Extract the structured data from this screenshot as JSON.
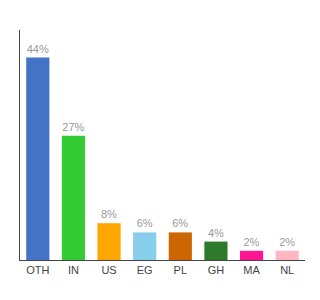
{
  "chart_data": {
    "type": "bar",
    "categories": [
      "OTH",
      "IN",
      "US",
      "EG",
      "PL",
      "GH",
      "MA",
      "NL"
    ],
    "values": [
      44,
      27,
      8,
      6,
      6,
      4,
      2,
      2
    ],
    "value_labels": [
      "44%",
      "27%",
      "8%",
      "6%",
      "6%",
      "4%",
      "2%",
      "2%"
    ],
    "colors": [
      "#4472C4",
      "#33CC33",
      "#FFA500",
      "#87CEEB",
      "#CC6600",
      "#2D7A2D",
      "#FF1493",
      "#FFB6C1"
    ],
    "data_labels": true,
    "ylim": [
      0,
      50
    ],
    "tick_labels": "x",
    "grid": false
  }
}
